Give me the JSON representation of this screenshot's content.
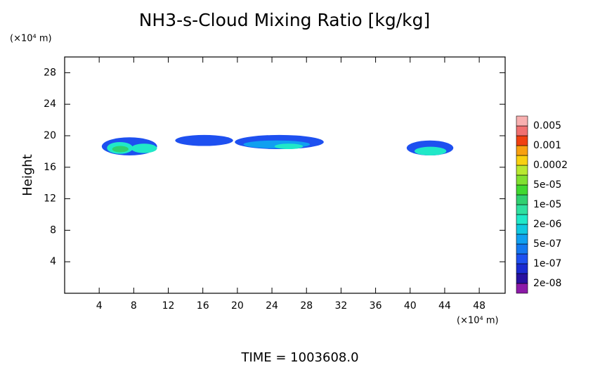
{
  "chart_data": {
    "type": "contour",
    "title": "NH3-s-Cloud Mixing Ratio [kg/kg]",
    "y_unit": "(×10⁴ m)",
    "x_unit": "(×10⁴ m)",
    "ylabel": "Height",
    "footer": "TIME = 1003608.0",
    "xlim": [
      0,
      51
    ],
    "ylim": [
      0,
      30
    ],
    "xticks": [
      4,
      8,
      12,
      16,
      20,
      24,
      28,
      32,
      36,
      40,
      44,
      48
    ],
    "yticks": [
      4,
      8,
      12,
      16,
      20,
      24,
      28
    ],
    "colorbar": {
      "levels": [
        {
          "value": 2e-08,
          "label": "2e-08"
        },
        {
          "value": 1e-07,
          "label": "1e-07"
        },
        {
          "value": 5e-07,
          "label": "5e-07"
        },
        {
          "value": 2e-06,
          "label": "2e-06"
        },
        {
          "value": 1e-05,
          "label": "1e-05"
        },
        {
          "value": 5e-05,
          "label": "5e-05"
        },
        0.0002,
        0.001,
        0.005
      ],
      "colors": [
        "#8c1aa8",
        "#2810a0",
        "#1a2ad0",
        "#1e50f0",
        "#1478f0",
        "#10a0f0",
        "#10c8e0",
        "#20e8c8",
        "#30e0a0",
        "#30d070",
        "#40d830",
        "#80e030",
        "#b8e830",
        "#f8d010",
        "#f8a010",
        "#f04010",
        "#f07070",
        "#f8b0b0"
      ]
    },
    "blobs": [
      {
        "x": [
          4.3,
          10.7
        ],
        "y": [
          17.5,
          19.8
        ],
        "value": 2e-07
      },
      {
        "x": [
          4.9,
          7.9
        ],
        "y": [
          17.7,
          19.2
        ],
        "value": 5e-06
      },
      {
        "x": [
          7.7,
          10.7
        ],
        "y": [
          17.8,
          19.0
        ],
        "value": 3e-06
      },
      {
        "x": [
          5.5,
          7.4
        ],
        "y": [
          17.9,
          18.7
        ],
        "value": 3e-05
      },
      {
        "x": [
          12.8,
          19.5
        ],
        "y": [
          18.7,
          20.1
        ],
        "value": 1e-07
      },
      {
        "x": [
          19.7,
          30.0
        ],
        "y": [
          18.3,
          20.1
        ],
        "value": 2e-07
      },
      {
        "x": [
          20.7,
          28.4
        ],
        "y": [
          18.4,
          19.4
        ],
        "value": 1e-06
      },
      {
        "x": [
          24.3,
          27.6
        ],
        "y": [
          18.3,
          19.0
        ],
        "value": 5e-06
      },
      {
        "x": [
          39.6,
          45.0
        ],
        "y": [
          17.5,
          19.4
        ],
        "value": 2e-07
      },
      {
        "x": [
          40.5,
          44.2
        ],
        "y": [
          17.5,
          18.6
        ],
        "value": 3e-06
      }
    ]
  }
}
